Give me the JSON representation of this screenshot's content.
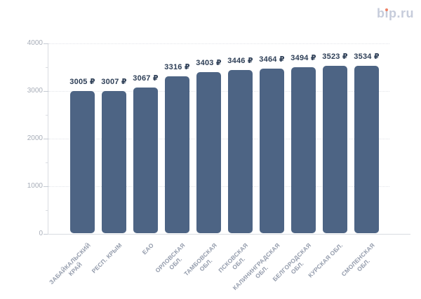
{
  "logo": {
    "text": "bip.ru",
    "part_b": "b",
    "part_i": "ı",
    "part_rest": "p.ru",
    "dot_color": "#ee8166",
    "text_color": "#c6ccdb"
  },
  "chart_data": {
    "type": "bar",
    "title": "",
    "xlabel": "",
    "ylabel": "",
    "categories": [
      "ЗАБАЙКАЛЬСКИЙ КРАЙ",
      "РЕСП. КРЫМ",
      "ЕАО",
      "ОРЛОВСКАЯ ОБЛ.",
      "ТАМБОВСКАЯ ОБЛ.",
      "ПСКОВСКАЯ ОБЛ.",
      "КАЛИНИНГРАДСКАЯ ОБЛ.",
      "БЕЛГОРОДСКАЯ ОБЛ.",
      "КУРСКАЯ ОБЛ.",
      "СМОЛЕНСКАЯ ОБЛ."
    ],
    "category_lines": [
      [
        "ЗАБАЙКАЛЬСКИЙ",
        "КРАЙ"
      ],
      [
        "РЕСП. КРЫМ"
      ],
      [
        "ЕАО"
      ],
      [
        "ОРЛОВСКАЯ",
        "ОБЛ."
      ],
      [
        "ТАМБОВСКАЯ",
        "ОБЛ."
      ],
      [
        "ПСКОВСКАЯ",
        "ОБЛ."
      ],
      [
        "КАЛИНИНГРАДСКАЯ",
        "ОБЛ."
      ],
      [
        "БЕЛГОРОДСКАЯ",
        "ОБЛ."
      ],
      [
        "КУРСКАЯ ОБЛ."
      ],
      [
        "СМОЛЕНСКАЯ",
        "ОБЛ."
      ]
    ],
    "values": [
      3005,
      3007,
      3067,
      3316,
      3403,
      3446,
      3464,
      3494,
      3523,
      3534
    ],
    "value_suffix": " ₽",
    "ylim": [
      0,
      4000
    ],
    "y_major_ticks": [
      0,
      1000,
      2000,
      3000,
      4000
    ],
    "y_minor_step": 500,
    "grid": "horizontal-dotted",
    "legend": "none",
    "bar_color": "#4d6484",
    "value_label_color": "#2d3e56",
    "y_tick_label_color": "#a7adb8",
    "x_tick_label_color": "#949cac"
  }
}
